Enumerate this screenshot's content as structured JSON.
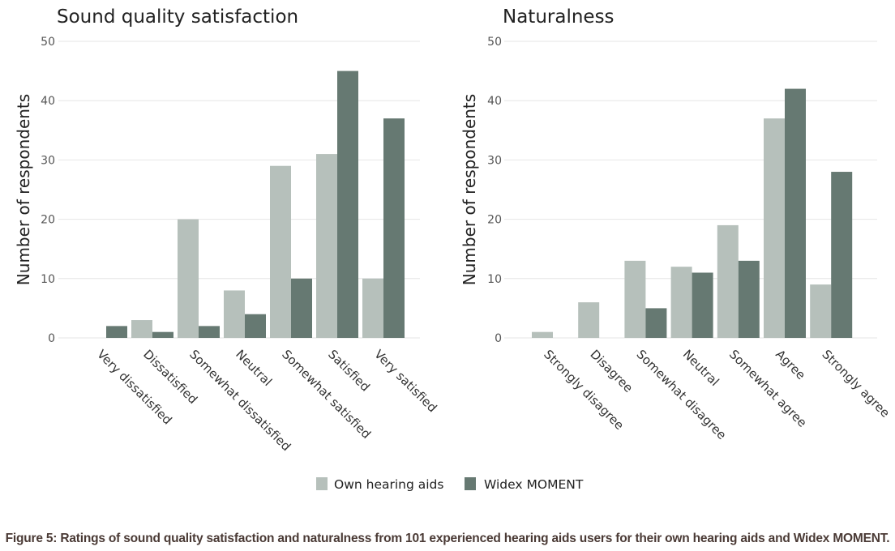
{
  "colors": {
    "own": "#b6c0bb",
    "widex": "#667972",
    "grid": "#e6e6e6",
    "text": "#333333",
    "caption": "#4a3a35"
  },
  "legend": {
    "items": [
      {
        "name": "Own hearing aids",
        "color": "#b6c0bb"
      },
      {
        "name": "Widex MOMENT",
        "color": "#667972"
      }
    ],
    "placement": "bottom-center"
  },
  "caption": "Figure 5: Ratings of sound quality satisfaction and naturalness from 101 experienced hearing aids users for their own hearing aids and Widex MOMENT.",
  "chart_data": [
    {
      "type": "bar",
      "title": "Sound quality satisfaction",
      "xlabel": "",
      "ylabel": "Number of respondents",
      "ylim": [
        0,
        50
      ],
      "yticks": [
        0,
        10,
        20,
        30,
        40,
        50
      ],
      "grid": true,
      "categories": [
        "Very dissatisfied",
        "Dissatisfied",
        "Somewhat dissatisfied",
        "Neutral",
        "Somewhat satisfied",
        "Satisfied",
        "Very satisfied"
      ],
      "series": [
        {
          "name": "Own hearing aids",
          "values": [
            0,
            3,
            20,
            8,
            29,
            31,
            10
          ]
        },
        {
          "name": "Widex MOMENT",
          "values": [
            2,
            1,
            2,
            4,
            10,
            45,
            37
          ]
        }
      ]
    },
    {
      "type": "bar",
      "title": "Naturalness",
      "xlabel": "",
      "ylabel": "Number of respondents",
      "ylim": [
        0,
        50
      ],
      "yticks": [
        0,
        10,
        20,
        30,
        40,
        50
      ],
      "grid": true,
      "categories": [
        "Strongly disagree",
        "Disagree",
        "Somewhat disagree",
        "Neutral",
        "Somewhat agree",
        "Agree",
        "Strongly agree"
      ],
      "series": [
        {
          "name": "Own hearing aids",
          "values": [
            1,
            6,
            13,
            12,
            19,
            37,
            9
          ]
        },
        {
          "name": "Widex MOMENT",
          "values": [
            0,
            0,
            5,
            11,
            13,
            42,
            28
          ]
        }
      ]
    }
  ]
}
